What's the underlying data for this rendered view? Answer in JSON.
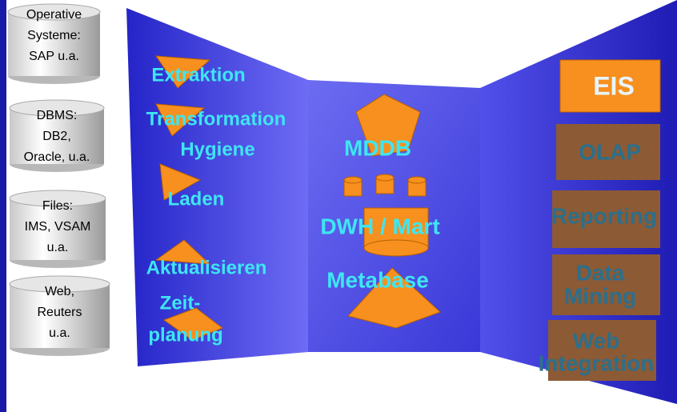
{
  "sources": [
    {
      "lines": [
        "Operative",
        "Systeme:",
        "SAP u.a."
      ]
    },
    {
      "lines": [
        "DBMS:",
        "DB2,",
        "Oracle, u.a."
      ]
    },
    {
      "lines": [
        "Files:",
        "IMS, VSAM",
        "u.a."
      ]
    },
    {
      "lines": [
        "Web,",
        "Reuters",
        "u.a."
      ]
    }
  ],
  "processes": [
    "Extraktion",
    "Transformation",
    "Hygiene",
    "Laden",
    "Aktualisieren",
    "Zeit-",
    "planung"
  ],
  "storage": [
    "MDDB",
    "DWH / Mart",
    "Metabase"
  ],
  "applications": [
    {
      "lines": [
        "EIS"
      ]
    },
    {
      "lines": [
        "OLAP"
      ]
    },
    {
      "lines": [
        "Reporting"
      ]
    },
    {
      "lines": [
        "Data",
        "Mining"
      ]
    },
    {
      "lines": [
        "Web",
        "Integration"
      ]
    }
  ]
}
